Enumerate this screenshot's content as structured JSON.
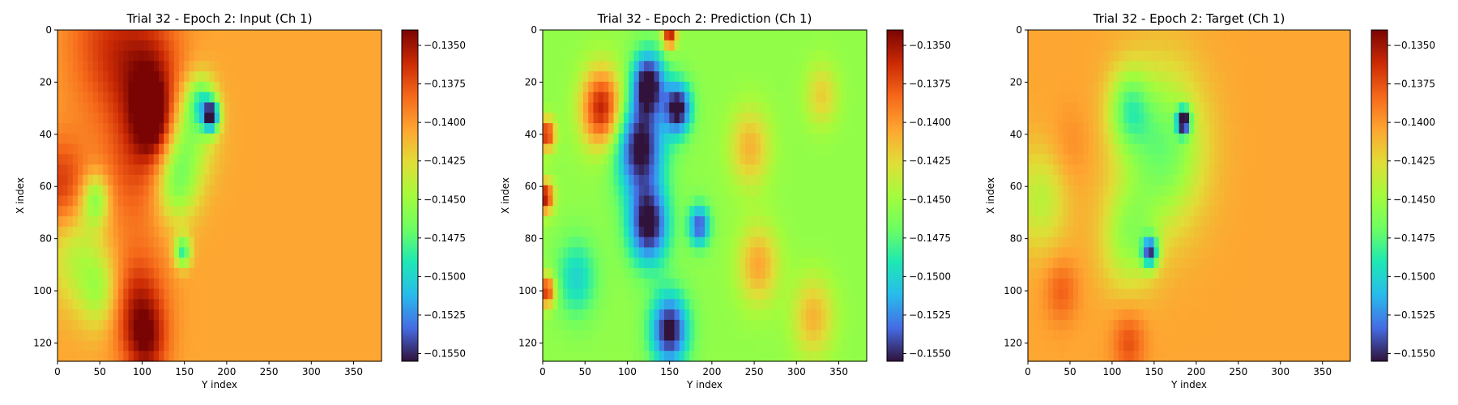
{
  "chart_data": [
    {
      "type": "heatmap",
      "title": "Trial 32 - Epoch 2: Input (Ch 1)",
      "xlabel": "Y index",
      "ylabel": "X index",
      "xlim": [
        0,
        383
      ],
      "ylim": [
        127,
        0
      ],
      "x_ticks": [
        "0",
        "50",
        "100",
        "150",
        "200",
        "250",
        "300",
        "350"
      ],
      "y_ticks": [
        "0",
        "20",
        "40",
        "60",
        "80",
        "100",
        "120"
      ],
      "colormap": "turbo",
      "colorbar": {
        "range": [
          -0.1555,
          -0.134
        ],
        "ticks": [
          "−0.1350",
          "−0.1375",
          "−0.1400",
          "−0.1425",
          "−0.1450",
          "−0.1475",
          "−0.1500",
          "−0.1525",
          "−0.1550"
        ]
      },
      "field": {
        "background": -0.1405,
        "blobs": [
          {
            "y": 5,
            "x": 60,
            "r": 30,
            "v": -0.137
          },
          {
            "y": 20,
            "x": 110,
            "r": 25,
            "v": -0.1355
          },
          {
            "y": 35,
            "x": 115,
            "r": 15,
            "v": -0.1345
          },
          {
            "y": 60,
            "x": 5,
            "r": 18,
            "v": -0.1365
          },
          {
            "y": 55,
            "x": 90,
            "r": 25,
            "v": -0.138
          },
          {
            "y": 105,
            "x": 95,
            "r": 20,
            "v": -0.136
          },
          {
            "y": 120,
            "x": 105,
            "r": 15,
            "v": -0.136
          },
          {
            "y": 85,
            "x": 20,
            "r": 20,
            "v": -0.144
          },
          {
            "y": 65,
            "x": 45,
            "r": 10,
            "v": -0.146
          },
          {
            "y": 100,
            "x": 50,
            "r": 15,
            "v": -0.1445
          },
          {
            "y": 40,
            "x": 150,
            "r": 20,
            "v": -0.146
          },
          {
            "y": 60,
            "x": 140,
            "r": 15,
            "v": -0.145
          },
          {
            "y": 33,
            "x": 182,
            "r": 6,
            "v": -0.153
          },
          {
            "y": 28,
            "x": 170,
            "r": 10,
            "v": -0.147
          },
          {
            "y": 85,
            "x": 148,
            "r": 6,
            "v": -0.1485
          }
        ]
      }
    },
    {
      "type": "heatmap",
      "title": "Trial 32 - Epoch 2: Prediction (Ch 1)",
      "xlabel": "Y index",
      "ylabel": "X index",
      "xlim": [
        0,
        383
      ],
      "ylim": [
        127,
        0
      ],
      "x_ticks": [
        "0",
        "50",
        "100",
        "150",
        "200",
        "250",
        "300",
        "350"
      ],
      "y_ticks": [
        "0",
        "20",
        "40",
        "60",
        "80",
        "100",
        "120"
      ],
      "colormap": "turbo",
      "colorbar": {
        "range": [
          -0.1555,
          -0.134
        ],
        "ticks": [
          "−0.1350",
          "−0.1375",
          "−0.1400",
          "−0.1425",
          "−0.1450",
          "−0.1475",
          "−0.1500",
          "−0.1525",
          "−0.1550"
        ]
      },
      "field": {
        "background": -0.1455,
        "blobs": [
          {
            "y": 30,
            "x": 70,
            "r": 15,
            "v": -0.1355
          },
          {
            "y": 64,
            "x": 3,
            "r": 6,
            "v": -0.135
          },
          {
            "y": 40,
            "x": 5,
            "r": 6,
            "v": -0.136
          },
          {
            "y": 100,
            "x": 5,
            "r": 6,
            "v": -0.136
          },
          {
            "y": 45,
            "x": 115,
            "r": 18,
            "v": -0.156
          },
          {
            "y": 20,
            "x": 125,
            "r": 12,
            "v": -0.156
          },
          {
            "y": 75,
            "x": 125,
            "r": 15,
            "v": -0.156
          },
          {
            "y": 115,
            "x": 150,
            "r": 14,
            "v": -0.156
          },
          {
            "y": 30,
            "x": 160,
            "r": 10,
            "v": -0.156
          },
          {
            "y": 45,
            "x": 245,
            "r": 15,
            "v": -0.141
          },
          {
            "y": 90,
            "x": 255,
            "r": 15,
            "v": -0.1405
          },
          {
            "y": 110,
            "x": 320,
            "r": 15,
            "v": -0.141
          },
          {
            "y": 25,
            "x": 330,
            "r": 12,
            "v": -0.142
          },
          {
            "y": 95,
            "x": 40,
            "r": 15,
            "v": -0.15
          },
          {
            "y": 75,
            "x": 185,
            "r": 8,
            "v": -0.154
          },
          {
            "y": 2,
            "x": 150,
            "r": 5,
            "v": -0.135
          }
        ]
      }
    },
    {
      "type": "heatmap",
      "title": "Trial 32 - Epoch 2: Target (Ch 1)",
      "xlabel": "Y index",
      "ylabel": "X index",
      "xlim": [
        0,
        383
      ],
      "ylim": [
        127,
        0
      ],
      "x_ticks": [
        "0",
        "50",
        "100",
        "150",
        "200",
        "250",
        "300",
        "350"
      ],
      "y_ticks": [
        "0",
        "20",
        "40",
        "60",
        "80",
        "100",
        "120"
      ],
      "colormap": "turbo",
      "colorbar": {
        "range": [
          -0.1555,
          -0.134
        ],
        "ticks": [
          "−0.1350",
          "−0.1375",
          "−0.1400",
          "−0.1425",
          "−0.1450",
          "−0.1475",
          "−0.1500",
          "−0.1525",
          "−0.1550"
        ]
      },
      "field": {
        "background": -0.1405,
        "blobs": [
          {
            "y": 45,
            "x": 160,
            "r": 30,
            "v": -0.147
          },
          {
            "y": 30,
            "x": 120,
            "r": 15,
            "v": -0.146
          },
          {
            "y": 80,
            "x": 120,
            "r": 20,
            "v": -0.145
          },
          {
            "y": 35,
            "x": 185,
            "r": 5,
            "v": -0.1545
          },
          {
            "y": 85,
            "x": 145,
            "r": 6,
            "v": -0.152
          },
          {
            "y": 100,
            "x": 40,
            "r": 12,
            "v": -0.138
          },
          {
            "y": 45,
            "x": 50,
            "r": 15,
            "v": -0.1395
          },
          {
            "y": 120,
            "x": 120,
            "r": 12,
            "v": -0.1375
          },
          {
            "y": 65,
            "x": 15,
            "r": 20,
            "v": -0.144
          }
        ]
      }
    }
  ]
}
